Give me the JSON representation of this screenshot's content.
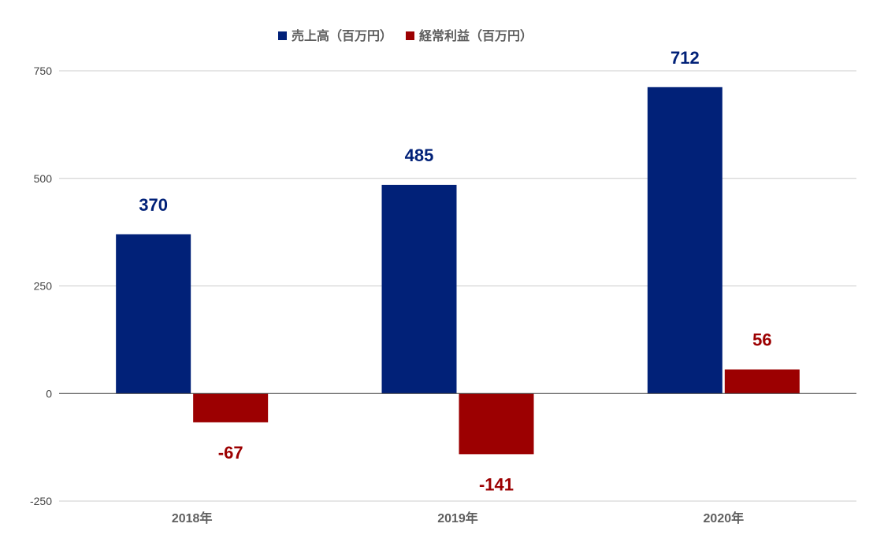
{
  "chart_data": {
    "type": "bar",
    "categories": [
      "2018年",
      "2019年",
      "2020年"
    ],
    "series": [
      {
        "name": "売上高（百万円）",
        "values": [
          370,
          485,
          712
        ],
        "color": "#012178"
      },
      {
        "name": "経常利益（百万円）",
        "values": [
          -67,
          -141,
          56
        ],
        "color": "#9c0001"
      }
    ],
    "ylim": [
      -250,
      750
    ],
    "yticks": [
      -250,
      0,
      250,
      500,
      750
    ],
    "grid": true,
    "legend_position": "top-center",
    "data_labels": true
  }
}
